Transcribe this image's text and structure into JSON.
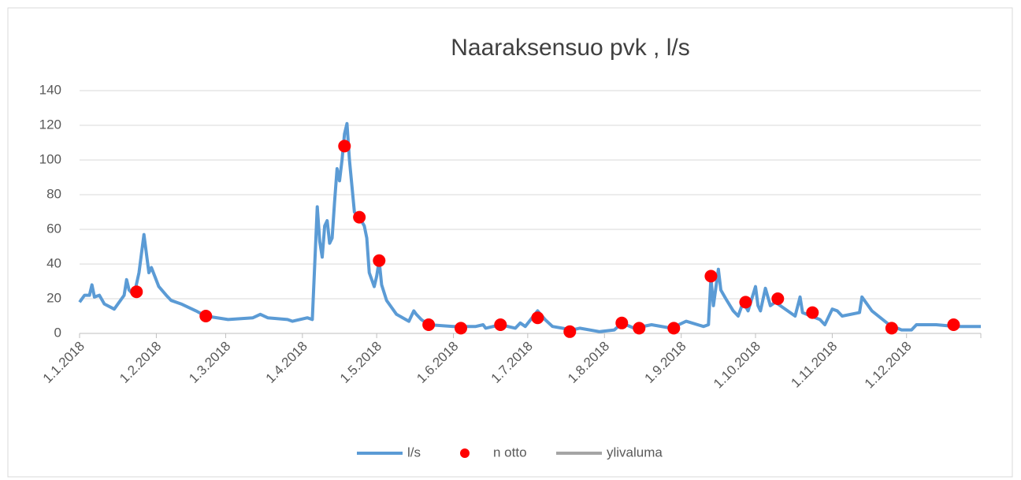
{
  "chart_data": {
    "type": "line",
    "title": "Naaraksensuo pvk , l/s",
    "xlim": [
      "1.1.2018",
      "31.12.2018"
    ],
    "xticks": [
      "1.1.2018",
      "1.2.2018",
      "1.3.2018",
      "1.4.2018",
      "1.5.2018",
      "1.6.2018",
      "1.7.2018",
      "1.8.2018",
      "1.9.2018",
      "1.10.2018",
      "1.11.2018",
      "1.12.2018"
    ],
    "ylim": [
      0,
      140
    ],
    "yticks": [
      0,
      20,
      40,
      60,
      80,
      100,
      120,
      140
    ],
    "grid": true,
    "legend": "bottom",
    "series": [
      {
        "name": "l/s",
        "type": "line",
        "color": "#5b9bd5",
        "x": [
          "1.1.2018",
          "3.1.2018",
          "5.1.2018",
          "6.1.2018",
          "7.1.2018",
          "9.1.2018",
          "11.1.2018",
          "15.1.2018",
          "19.1.2018",
          "20.1.2018",
          "21.1.2018",
          "23.1.2018",
          "25.1.2018",
          "27.1.2018",
          "29.1.2018",
          "30.1.2018",
          "2.2.2018",
          "5.2.2018",
          "7.2.2018",
          "11.2.2018",
          "17.2.2018",
          "21.2.2018",
          "2.3.2018",
          "12.3.2018",
          "15.3.2018",
          "18.3.2018",
          "26.3.2018",
          "28.3.2018",
          "3.4.2018",
          "5.4.2018",
          "7.4.2018",
          "8.4.2018",
          "9.4.2018",
          "10.4.2018",
          "11.4.2018",
          "12.4.2018",
          "13.4.2018",
          "14.4.2018",
          "15.4.2018",
          "16.4.2018",
          "17.4.2018",
          "18.4.2018",
          "19.4.2018",
          "20.4.2018",
          "21.4.2018",
          "22.4.2018",
          "24.4.2018",
          "26.4.2018",
          "27.4.2018",
          "28.4.2018",
          "30.4.2018",
          "1.5.2018",
          "2.5.2018",
          "3.5.2018",
          "5.5.2018",
          "7.5.2018",
          "9.5.2018",
          "14.5.2018",
          "16.5.2018",
          "17.5.2018",
          "19.5.2018",
          "22.5.2018",
          "1.6.2018",
          "10.6.2018",
          "13.6.2018",
          "14.6.2018",
          "20.6.2018",
          "26.6.2018",
          "28.6.2018",
          "30.6.2018",
          "5.7.2018",
          "8.7.2018",
          "11.7.2018",
          "19.7.2018",
          "22.7.2018",
          "30.7.2018",
          "5.8.2018",
          "8.8.2018",
          "13.8.2018",
          "20.8.2018",
          "28.8.2018",
          "3.9.2018",
          "10.9.2018",
          "12.9.2018",
          "13.9.2018",
          "14.9.2018",
          "16.9.2018",
          "17.9.2018",
          "19.9.2018",
          "22.9.2018",
          "24.9.2018",
          "26.9.2018",
          "28.9.2018",
          "1.10.2018",
          "2.10.2018",
          "3.10.2018",
          "5.10.2018",
          "7.10.2018",
          "9.10.2018",
          "15.10.2018",
          "17.10.2018",
          "19.10.2018",
          "20.10.2018",
          "27.10.2018",
          "29.10.2018",
          "1.11.2018",
          "3.11.2018",
          "5.11.2018",
          "12.11.2018",
          "13.11.2018",
          "17.11.2018",
          "24.11.2018",
          "29.11.2018",
          "3.12.2018",
          "5.12.2018",
          "13.12.2018",
          "21.12.2018",
          "31.12.2018"
        ],
        "values": [
          18,
          22,
          22,
          28,
          21,
          22,
          17,
          14,
          22,
          31,
          25,
          22,
          35,
          57,
          35,
          38,
          27,
          22,
          19,
          17,
          13,
          10,
          8,
          9,
          11,
          9,
          8,
          7,
          9,
          8,
          73,
          53,
          44,
          62,
          65,
          52,
          55,
          76,
          95,
          88,
          100,
          115,
          121,
          100,
          85,
          70,
          67,
          62,
          55,
          35,
          27,
          33,
          42,
          28,
          19,
          15,
          11,
          7,
          13,
          11,
          8,
          5,
          4,
          4,
          5,
          3,
          5,
          3,
          6,
          4,
          13,
          8,
          4,
          2,
          3,
          1,
          2,
          6,
          3,
          5,
          3,
          7,
          4,
          5,
          32,
          16,
          37,
          25,
          20,
          13,
          10,
          18,
          13,
          27,
          16,
          13,
          26,
          16,
          18,
          12,
          10,
          21,
          12,
          8,
          5,
          14,
          13,
          10,
          12,
          21,
          13,
          5,
          2,
          2,
          5,
          5,
          4,
          4
        ]
      },
      {
        "name": "n otto",
        "type": "scatter",
        "color": "#ff0000",
        "x": [
          "24.1.2018",
          "21.2.2018",
          "18.4.2018",
          "24.4.2018",
          "2.5.2018",
          "22.5.2018",
          "4.6.2018",
          "20.6.2018",
          "5.7.2018",
          "18.7.2018",
          "8.8.2018",
          "15.8.2018",
          "29.8.2018",
          "13.9.2018",
          "27.9.2018",
          "10.10.2018",
          "24.10.2018",
          "25.11.2018",
          "20.12.2018"
        ],
        "values": [
          24,
          10,
          108,
          67,
          42,
          5,
          3,
          5,
          9,
          1,
          6,
          3,
          3,
          33,
          18,
          20,
          12,
          3,
          5
        ]
      },
      {
        "name": "ylivaluma",
        "type": "line",
        "color": "#a5a5a5",
        "x": [],
        "values": []
      }
    ]
  }
}
